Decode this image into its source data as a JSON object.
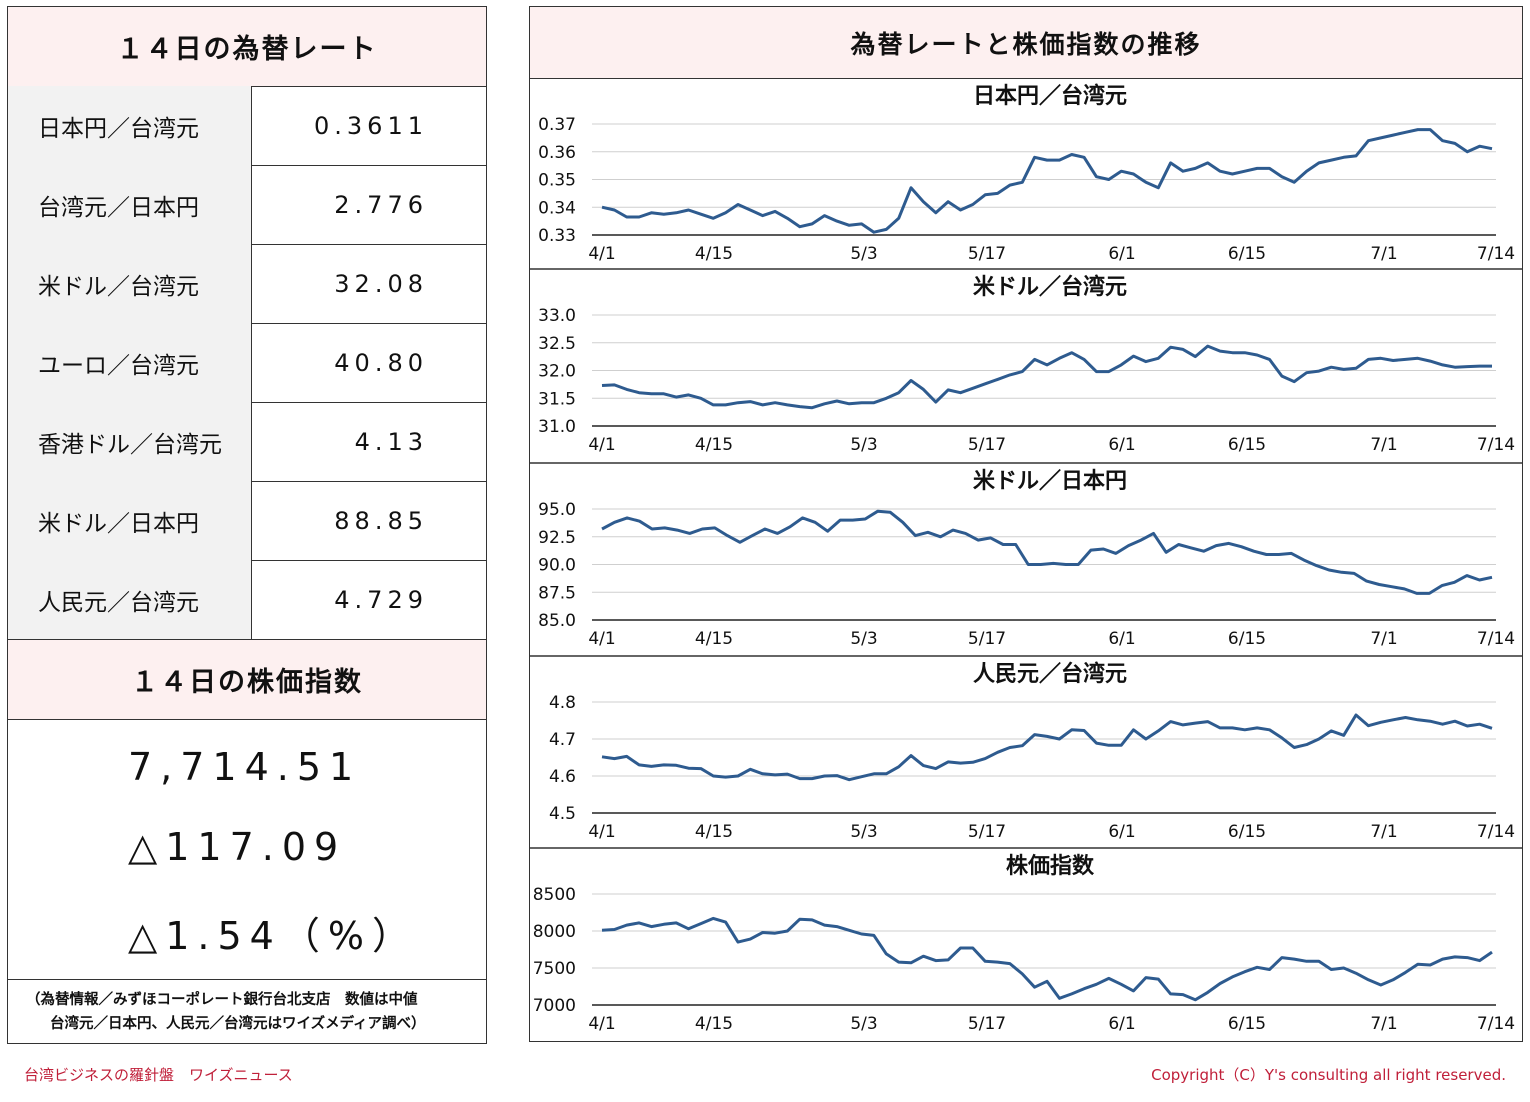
{
  "rates": {
    "title": "１４日の為替レート",
    "rows": [
      {
        "label": "日本円／台湾元",
        "value": "0.3611"
      },
      {
        "label": "台湾元／日本円",
        "value": "2.776"
      },
      {
        "label": "米ドル／台湾元",
        "value": "32.08"
      },
      {
        "label": "ユーロ／台湾元",
        "value": "40.80"
      },
      {
        "label": "香港ドル／台湾元",
        "value": "4.13"
      },
      {
        "label": "米ドル／日本円",
        "value": "88.85"
      },
      {
        "label": "人民元／台湾元",
        "value": "4.729"
      }
    ]
  },
  "stock": {
    "title": "１４日の株価指数",
    "value": "7,714.51",
    "change": "△117.09",
    "percent": "△1.54（%）"
  },
  "note": {
    "line1": "（為替情報／みずほコーポレート銀行台北支店　数値は中値",
    "line2": "台湾元／日本円、人民元／台湾元はワイズメディア調べ）"
  },
  "footer": {
    "left": "台湾ビジネスの羅針盤　ワイズニュース",
    "right": "Copyright（C）Y's consulting all right reserved."
  },
  "charts_header": "為替レートと株価指数の推移",
  "colors": {
    "line": "#2e5b8f",
    "header_bg": "#fdf0f0",
    "label_bg": "#f2f2f2",
    "footer": "#c0203a"
  },
  "chart_data": [
    {
      "type": "line",
      "title": "日本円／台湾元",
      "ylim": [
        0.33,
        0.37
      ],
      "yticks": [
        "0.37",
        "0.36",
        "0.35",
        "0.34",
        "0.33"
      ],
      "xticks": [
        "4/1",
        "4/15",
        "5/3",
        "5/17",
        "6/1",
        "6/15",
        "7/1",
        "7/14"
      ],
      "values": [
        0.34,
        0.339,
        0.3365,
        0.3365,
        0.338,
        0.3375,
        0.338,
        0.339,
        0.3375,
        0.336,
        0.338,
        0.341,
        0.339,
        0.337,
        0.3385,
        0.336,
        0.333,
        0.334,
        0.337,
        0.335,
        0.3335,
        0.334,
        0.331,
        0.332,
        0.336,
        0.347,
        0.342,
        0.338,
        0.342,
        0.339,
        0.341,
        0.3445,
        0.345,
        0.348,
        0.349,
        0.358,
        0.357,
        0.357,
        0.359,
        0.358,
        0.351,
        0.35,
        0.353,
        0.352,
        0.349,
        0.347,
        0.356,
        0.353,
        0.354,
        0.356,
        0.353,
        0.352,
        0.353,
        0.354,
        0.354,
        0.351,
        0.349,
        0.353,
        0.356,
        0.357,
        0.358,
        0.3585,
        0.364,
        0.365,
        0.366,
        0.367,
        0.368,
        0.368,
        0.364,
        0.363,
        0.36,
        0.362,
        0.3611
      ]
    },
    {
      "type": "line",
      "title": "米ドル／台湾元",
      "ylim": [
        31.0,
        33.0
      ],
      "yticks": [
        "33.0",
        "32.5",
        "32.0",
        "31.5",
        "31.0"
      ],
      "xticks": [
        "4/1",
        "4/15",
        "5/3",
        "5/17",
        "6/1",
        "6/15",
        "7/1",
        "7/14"
      ],
      "values": [
        31.73,
        31.74,
        31.66,
        31.6,
        31.58,
        31.58,
        31.52,
        31.56,
        31.5,
        31.38,
        31.38,
        31.42,
        31.44,
        31.38,
        31.42,
        31.38,
        31.35,
        31.33,
        31.4,
        31.45,
        31.4,
        31.42,
        31.42,
        31.5,
        31.6,
        31.82,
        31.66,
        31.43,
        31.65,
        31.6,
        31.68,
        31.76,
        31.84,
        31.92,
        31.98,
        32.2,
        32.1,
        32.22,
        32.32,
        32.2,
        31.98,
        31.98,
        32.1,
        32.26,
        32.16,
        32.22,
        32.42,
        32.38,
        32.25,
        32.44,
        32.35,
        32.32,
        32.32,
        32.28,
        32.2,
        31.9,
        31.8,
        31.96,
        31.99,
        32.06,
        32.02,
        32.04,
        32.2,
        32.22,
        32.18,
        32.2,
        32.22,
        32.17,
        32.1,
        32.06,
        32.07,
        32.08,
        32.08
      ]
    },
    {
      "type": "line",
      "title": "米ドル／日本円",
      "ylim": [
        85.0,
        95.0
      ],
      "yticks": [
        "95.0",
        "92.5",
        "90.0",
        "87.5",
        "85.0"
      ],
      "xticks": [
        "4/1",
        "4/15",
        "5/3",
        "5/17",
        "6/1",
        "6/15",
        "7/1",
        "7/14"
      ],
      "values": [
        93.2,
        93.8,
        94.2,
        93.9,
        93.2,
        93.3,
        93.1,
        92.8,
        93.2,
        93.3,
        92.6,
        92.0,
        92.6,
        93.2,
        92.8,
        93.4,
        94.2,
        93.8,
        93.0,
        94.0,
        94.0,
        94.1,
        94.8,
        94.7,
        93.8,
        92.6,
        92.9,
        92.5,
        93.1,
        92.8,
        92.2,
        92.4,
        91.8,
        91.8,
        90.0,
        90.0,
        90.1,
        90.0,
        90.0,
        91.3,
        91.4,
        91.0,
        91.7,
        92.2,
        92.8,
        91.1,
        91.8,
        91.5,
        91.2,
        91.7,
        91.9,
        91.6,
        91.2,
        90.9,
        90.9,
        91.0,
        90.4,
        89.9,
        89.5,
        89.3,
        89.2,
        88.5,
        88.2,
        88.0,
        87.8,
        87.4,
        87.4,
        88.1,
        88.4,
        89.0,
        88.6,
        88.85
      ]
    },
    {
      "type": "line",
      "title": "人民元／台湾元",
      "ylim": [
        4.5,
        4.8
      ],
      "yticks": [
        "4.8",
        "4.7",
        "4.6",
        "4.5"
      ],
      "xticks": [
        "4/1",
        "4/15",
        "5/3",
        "5/17",
        "6/1",
        "6/15",
        "7/1",
        "7/14"
      ],
      "values": [
        4.652,
        4.647,
        4.653,
        4.63,
        4.626,
        4.63,
        4.629,
        4.621,
        4.62,
        4.6,
        4.597,
        4.6,
        4.618,
        4.606,
        4.603,
        4.605,
        4.593,
        4.593,
        4.6,
        4.601,
        4.59,
        4.598,
        4.606,
        4.606,
        4.625,
        4.655,
        4.628,
        4.62,
        4.638,
        4.635,
        4.637,
        4.647,
        4.664,
        4.677,
        4.682,
        4.712,
        4.707,
        4.7,
        4.725,
        4.723,
        4.689,
        4.683,
        4.683,
        4.725,
        4.7,
        4.722,
        4.747,
        4.738,
        4.743,
        4.747,
        4.73,
        4.73,
        4.725,
        4.73,
        4.725,
        4.703,
        4.677,
        4.685,
        4.7,
        4.722,
        4.71,
        4.765,
        4.736,
        4.745,
        4.752,
        4.758,
        4.752,
        4.748,
        4.74,
        4.748,
        4.735,
        4.74,
        4.729
      ]
    },
    {
      "type": "line",
      "title": "株価指数",
      "ylim": [
        7000,
        8500
      ],
      "yticks": [
        "8500",
        "8000",
        "7500",
        "7000"
      ],
      "xticks": [
        "4/1",
        "4/15",
        "5/3",
        "5/17",
        "6/1",
        "6/15",
        "7/1",
        "7/14"
      ],
      "values": [
        8010,
        8020,
        8080,
        8110,
        8060,
        8090,
        8110,
        8030,
        8100,
        8170,
        8120,
        7850,
        7890,
        7980,
        7970,
        8000,
        8160,
        8150,
        8080,
        8060,
        8010,
        7960,
        7940,
        7690,
        7580,
        7570,
        7660,
        7600,
        7610,
        7770,
        7770,
        7590,
        7580,
        7560,
        7420,
        7240,
        7320,
        7090,
        7150,
        7220,
        7280,
        7360,
        7280,
        7190,
        7370,
        7350,
        7150,
        7140,
        7070,
        7170,
        7290,
        7380,
        7450,
        7510,
        7480,
        7640,
        7620,
        7590,
        7590,
        7480,
        7500,
        7430,
        7340,
        7270,
        7340,
        7440,
        7550,
        7540,
        7620,
        7650,
        7640,
        7600,
        7714.51
      ]
    }
  ]
}
